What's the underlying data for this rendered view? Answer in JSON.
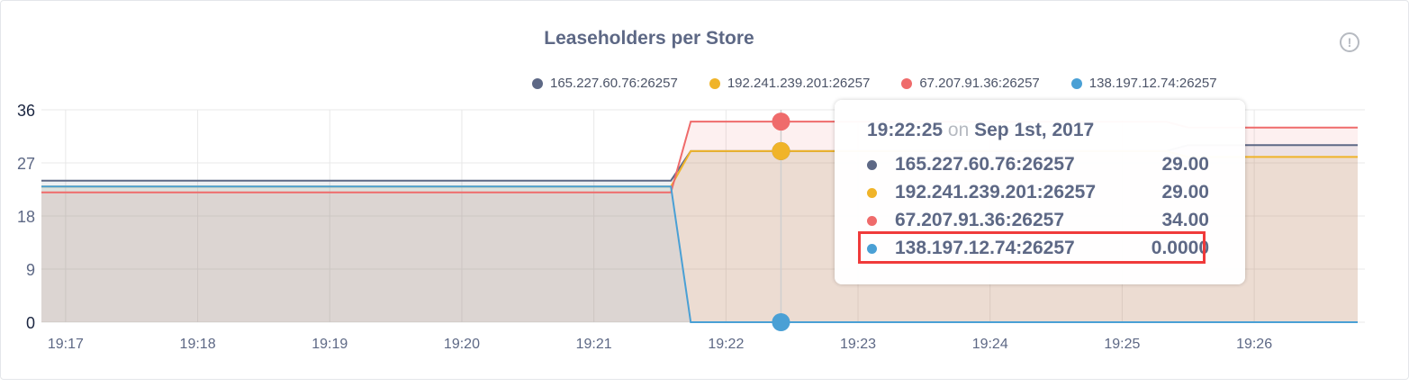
{
  "chart_data": {
    "type": "area",
    "title": "Leaseholders per Store",
    "xlabel": "",
    "ylabel": "",
    "ylim": [
      0,
      36
    ],
    "yticks": [
      "0",
      "9",
      "18",
      "27",
      "36"
    ],
    "xticks": [
      "19:17",
      "19:18",
      "19:19",
      "19:20",
      "19:21",
      "19:22",
      "19:23",
      "19:24",
      "19:25",
      "19:26"
    ],
    "xlim": [
      "19:16:49",
      "19:26:47"
    ],
    "grid": true,
    "legend": "top",
    "series": [
      {
        "name": "165.227.60.76:26257",
        "color": "#5d6885",
        "points": [
          [
            "19:16:49",
            24
          ],
          [
            "19:21:35",
            24
          ],
          [
            "19:21:44",
            29
          ],
          [
            "19:25:20",
            29
          ],
          [
            "19:25:30",
            30
          ],
          [
            "19:26:47",
            30
          ]
        ]
      },
      {
        "name": "192.241.239.201:26257",
        "color": "#f0b429",
        "points": [
          [
            "19:16:49",
            23
          ],
          [
            "19:21:35",
            23
          ],
          [
            "19:21:44",
            29
          ],
          [
            "19:25:20",
            29
          ],
          [
            "19:25:30",
            28
          ],
          [
            "19:26:47",
            28
          ]
        ]
      },
      {
        "name": "67.207.91.36:26257",
        "color": "#ef6b6b",
        "points": [
          [
            "19:16:49",
            22
          ],
          [
            "19:21:35",
            22
          ],
          [
            "19:21:44",
            34
          ],
          [
            "19:25:20",
            34
          ],
          [
            "19:25:30",
            33
          ],
          [
            "19:26:47",
            33
          ]
        ]
      },
      {
        "name": "138.197.12.74:26257",
        "color": "#4aa0d5",
        "points": [
          [
            "19:16:49",
            23
          ],
          [
            "19:21:35",
            23
          ],
          [
            "19:21:44",
            0
          ],
          [
            "19:26:47",
            0
          ]
        ]
      }
    ]
  },
  "tooltip": {
    "time": "19:22:25",
    "on": "on",
    "date": "Sep 1st, 2017",
    "hover_x": "19:22:25",
    "rows": [
      {
        "label": "165.227.60.76:26257",
        "value": "29.00"
      },
      {
        "label": "192.241.239.201:26257",
        "value": "29.00"
      },
      {
        "label": "67.207.91.36:26257",
        "value": "34.00"
      },
      {
        "label": "138.197.12.74:26257",
        "value": "0.0000"
      }
    ],
    "highlighted_row": 3,
    "highlight_color": "#f03a3a"
  },
  "info_icon": "!"
}
